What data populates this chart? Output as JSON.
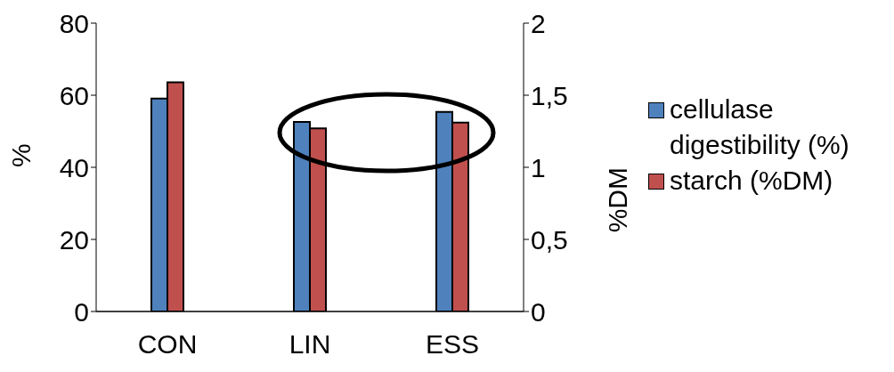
{
  "chart_data": {
    "type": "bar",
    "categories": [
      "CON",
      "LIN",
      "ESS"
    ],
    "series": [
      {
        "name": "cellulase digestibility (%)",
        "color": "#4f81bd",
        "values": [
          59.1,
          52.6,
          55.4
        ]
      },
      {
        "name": "starch (%DM)",
        "color": "#c0504d",
        "values": [
          1.59,
          1.27,
          1.31
        ],
        "axis": "y2"
      }
    ],
    "ylabel": "%",
    "y2label": "%DM",
    "ylim": [
      0,
      80
    ],
    "yticks": [
      0,
      20,
      40,
      60,
      80
    ],
    "y2lim": [
      0,
      2
    ],
    "y2ticks": [
      0,
      {
        "value": 0.5,
        "label": "0,5"
      },
      1,
      {
        "value": 1.5,
        "label": "1,5"
      },
      2
    ],
    "legend": "right"
  }
}
